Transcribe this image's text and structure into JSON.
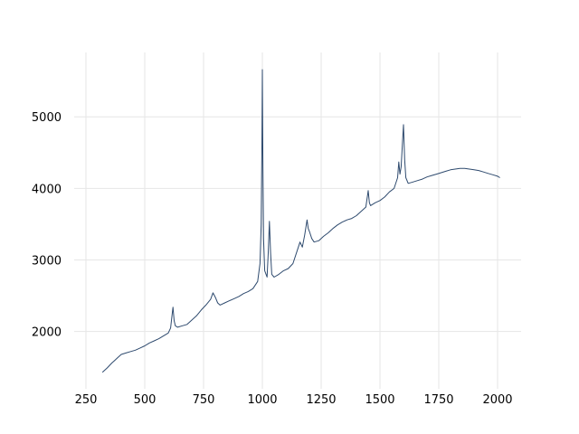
{
  "chart_data": {
    "type": "line",
    "title": "",
    "xlabel": "",
    "ylabel": "",
    "xlim": [
      200,
      2100
    ],
    "ylim": [
      1200,
      5900
    ],
    "xticks": [
      250,
      500,
      750,
      1000,
      1250,
      1500,
      1750,
      2000
    ],
    "yticks": [
      2000,
      3000,
      4000,
      5000
    ],
    "grid": true,
    "series": [
      {
        "color": "#2e4a6e",
        "x": [
          320,
          340,
          360,
          380,
          400,
          420,
          440,
          460,
          480,
          500,
          520,
          540,
          560,
          580,
          600,
          610,
          615,
          620,
          625,
          630,
          640,
          660,
          680,
          700,
          720,
          740,
          760,
          780,
          790,
          800,
          810,
          820,
          840,
          860,
          880,
          900,
          920,
          940,
          960,
          980,
          990,
          995,
          998,
          1000,
          1002,
          1005,
          1010,
          1020,
          1025,
          1030,
          1035,
          1040,
          1050,
          1070,
          1090,
          1110,
          1130,
          1150,
          1160,
          1170,
          1180,
          1190,
          1195,
          1200,
          1210,
          1220,
          1240,
          1260,
          1280,
          1300,
          1320,
          1340,
          1360,
          1380,
          1400,
          1420,
          1440,
          1450,
          1455,
          1460,
          1480,
          1500,
          1520,
          1540,
          1560,
          1575,
          1580,
          1585,
          1590,
          1595,
          1600,
          1605,
          1610,
          1620,
          1640,
          1660,
          1680,
          1700,
          1720,
          1740,
          1760,
          1780,
          1800,
          1820,
          1840,
          1860,
          1880,
          1900,
          1920,
          1940,
          1960,
          1980,
          2000,
          2010
        ],
        "y": [
          1430,
          1490,
          1560,
          1620,
          1680,
          1700,
          1720,
          1740,
          1770,
          1800,
          1840,
          1870,
          1900,
          1940,
          1980,
          2050,
          2200,
          2340,
          2150,
          2080,
          2060,
          2080,
          2100,
          2160,
          2220,
          2300,
          2370,
          2450,
          2540,
          2480,
          2400,
          2370,
          2400,
          2430,
          2460,
          2490,
          2530,
          2560,
          2600,
          2700,
          2950,
          3500,
          4600,
          5660,
          4500,
          3300,
          2850,
          2760,
          3100,
          3540,
          3100,
          2800,
          2760,
          2800,
          2850,
          2880,
          2950,
          3150,
          3250,
          3180,
          3350,
          3560,
          3440,
          3400,
          3300,
          3250,
          3270,
          3330,
          3380,
          3440,
          3490,
          3530,
          3560,
          3580,
          3620,
          3680,
          3740,
          3970,
          3800,
          3760,
          3800,
          3830,
          3880,
          3950,
          4000,
          4150,
          4370,
          4200,
          4300,
          4600,
          4890,
          4400,
          4150,
          4070,
          4090,
          4110,
          4130,
          4160,
          4180,
          4200,
          4220,
          4240,
          4260,
          4270,
          4280,
          4280,
          4270,
          4260,
          4250,
          4230,
          4210,
          4190,
          4170,
          4150
        ]
      }
    ]
  }
}
